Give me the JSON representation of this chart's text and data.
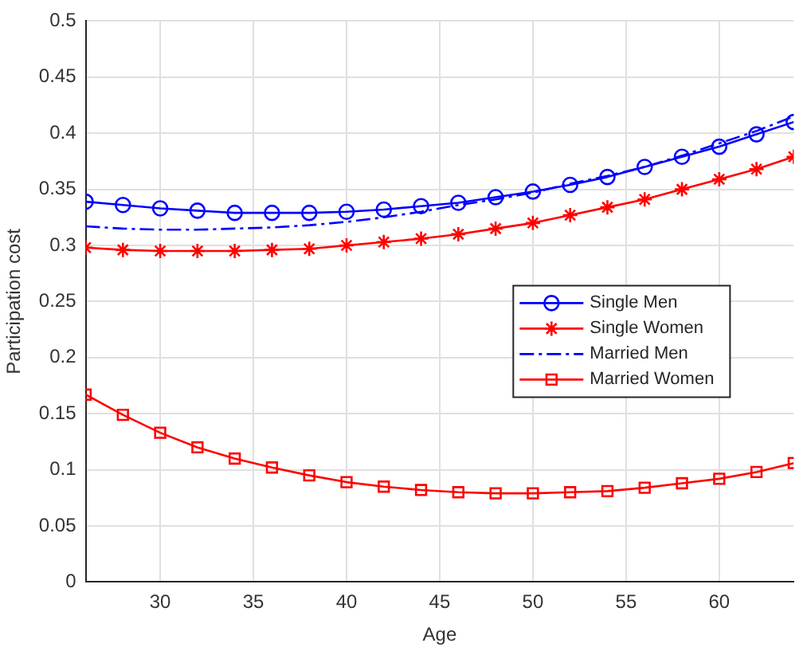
{
  "chart_data": {
    "type": "line",
    "xlabel": "Age",
    "ylabel": "Participation cost",
    "x": [
      26,
      28,
      30,
      32,
      34,
      36,
      38,
      40,
      42,
      44,
      46,
      48,
      50,
      52,
      54,
      56,
      58,
      60,
      62,
      64
    ],
    "series": [
      {
        "name": "Single Men",
        "color": "#0000ff",
        "marker": "circle",
        "line_style": "solid",
        "values": [
          0.339,
          0.336,
          0.333,
          0.331,
          0.329,
          0.329,
          0.329,
          0.33,
          0.332,
          0.335,
          0.338,
          0.343,
          0.348,
          0.354,
          0.361,
          0.37,
          0.379,
          0.388,
          0.399,
          0.41
        ]
      },
      {
        "name": "Single Women",
        "color": "#ff0000",
        "marker": "cross",
        "line_style": "solid",
        "values": [
          0.298,
          0.296,
          0.295,
          0.295,
          0.295,
          0.296,
          0.297,
          0.3,
          0.303,
          0.306,
          0.31,
          0.315,
          0.32,
          0.327,
          0.334,
          0.341,
          0.35,
          0.359,
          0.368,
          0.379
        ]
      },
      {
        "name": "Married Men",
        "color": "#0000ff",
        "marker": "none",
        "line_style": "dashdot",
        "values": [
          0.317,
          0.315,
          0.314,
          0.314,
          0.315,
          0.316,
          0.318,
          0.321,
          0.325,
          0.33,
          0.336,
          0.341,
          0.347,
          0.355,
          0.362,
          0.37,
          0.38,
          0.391,
          0.402,
          0.415
        ]
      },
      {
        "name": "Married Women",
        "color": "#ff0000",
        "marker": "square",
        "line_style": "solid",
        "values": [
          0.167,
          0.149,
          0.133,
          0.12,
          0.11,
          0.102,
          0.095,
          0.089,
          0.085,
          0.082,
          0.08,
          0.079,
          0.079,
          0.08,
          0.081,
          0.084,
          0.088,
          0.092,
          0.098,
          0.106
        ]
      }
    ],
    "xlim": [
      26,
      64
    ],
    "xticks": [
      30,
      35,
      40,
      45,
      50,
      55,
      60
    ],
    "ylim": [
      0,
      0.5
    ],
    "yticks": [
      0,
      0.05,
      0.1,
      0.15,
      0.2,
      0.25,
      0.3,
      0.35,
      0.4,
      0.45,
      0.5
    ],
    "grid": true,
    "legend": "right"
  }
}
